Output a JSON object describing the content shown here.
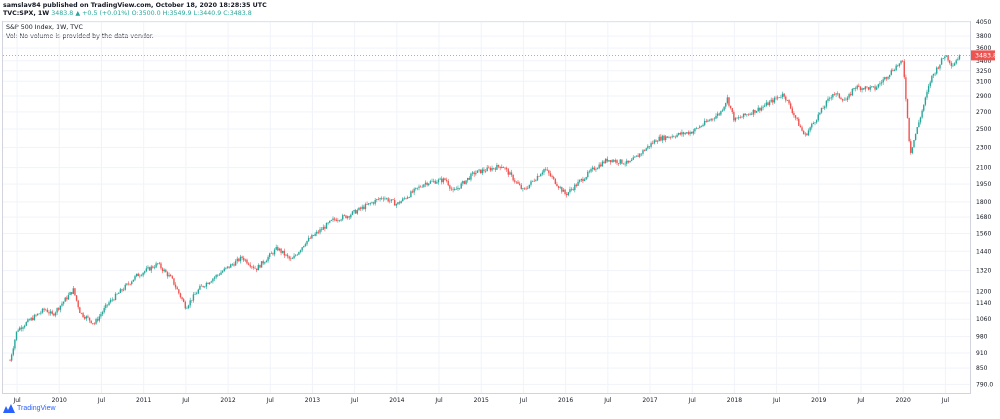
{
  "header": {
    "line1": "samslav84 published on TradingView.com, October 18, 2020 18:28:35 UTC",
    "symbol": "TVC:SPX, 1W",
    "last": "3483.8",
    "change": "▲ +0.5 (+0.01%)",
    "ohlc": "O:3500.0 H:3549.9 L:3440.9 C:3483.8"
  },
  "legend": {
    "title": "S&P 500 Index, 1W, TVC",
    "vol_note": "Vol: No volume is provided by the data vendor."
  },
  "footer": {
    "brand": "TradingView"
  },
  "colors": {
    "up": "#26a69a",
    "down": "#ef5350",
    "price_tag": "#ef5350"
  },
  "chart_data": {
    "type": "candlestick",
    "title": "S&P 500 Index, 1W, TVC",
    "ylim": [
      760,
      4050
    ],
    "y_tick_labels": [
      "4050",
      "3800",
      "3600",
      "3400",
      "3250",
      "3100",
      "2900",
      "2700",
      "2500",
      "2300",
      "2100",
      "1950",
      "1800",
      "1680",
      "1560",
      "1440",
      "1320",
      "1200",
      "1140",
      "1060",
      "980",
      "910",
      "850",
      "790.0"
    ],
    "x_tick_labels": [
      "Jul",
      "2010",
      "Jul",
      "2011",
      "Jul",
      "2012",
      "Jul",
      "2013",
      "Jul",
      "2014",
      "Jul",
      "2015",
      "Jul",
      "2016",
      "Jul",
      "2017",
      "Jul",
      "2018",
      "Jul",
      "2019",
      "Jul",
      "2020",
      "Jul"
    ],
    "last_price_label": "3483.8",
    "series": [
      {
        "name": "S&P 500 Index",
        "points": [
          {
            "t": "2009-07",
            "close": 880
          },
          {
            "t": "2009-08",
            "close": 1010
          },
          {
            "t": "2009-10",
            "close": 1060
          },
          {
            "t": "2009-12",
            "close": 1110
          },
          {
            "t": "2010-01",
            "close": 1080
          },
          {
            "t": "2010-04",
            "close": 1210
          },
          {
            "t": "2010-05",
            "close": 1090
          },
          {
            "t": "2010-07",
            "close": 1040
          },
          {
            "t": "2010-09",
            "close": 1140
          },
          {
            "t": "2011-01",
            "close": 1290
          },
          {
            "t": "2011-04",
            "close": 1360
          },
          {
            "t": "2011-06",
            "close": 1270
          },
          {
            "t": "2011-08",
            "close": 1120
          },
          {
            "t": "2011-10",
            "close": 1220
          },
          {
            "t": "2012-01",
            "close": 1310
          },
          {
            "t": "2012-04",
            "close": 1400
          },
          {
            "t": "2012-06",
            "close": 1330
          },
          {
            "t": "2012-09",
            "close": 1460
          },
          {
            "t": "2012-11",
            "close": 1380
          },
          {
            "t": "2013-01",
            "close": 1500
          },
          {
            "t": "2013-05",
            "close": 1660
          },
          {
            "t": "2013-07",
            "close": 1690
          },
          {
            "t": "2013-12",
            "close": 1840
          },
          {
            "t": "2014-02",
            "close": 1780
          },
          {
            "t": "2014-06",
            "close": 1960
          },
          {
            "t": "2014-09",
            "close": 1990
          },
          {
            "t": "2014-10",
            "close": 1880
          },
          {
            "t": "2015-01",
            "close": 2050
          },
          {
            "t": "2015-05",
            "close": 2120
          },
          {
            "t": "2015-08",
            "close": 1890
          },
          {
            "t": "2015-11",
            "close": 2090
          },
          {
            "t": "2016-02",
            "close": 1860
          },
          {
            "t": "2016-06",
            "close": 2090
          },
          {
            "t": "2016-08",
            "close": 2180
          },
          {
            "t": "2016-11",
            "close": 2140
          },
          {
            "t": "2017-03",
            "close": 2390
          },
          {
            "t": "2017-08",
            "close": 2470
          },
          {
            "t": "2017-12",
            "close": 2690
          },
          {
            "t": "2018-01",
            "close": 2870
          },
          {
            "t": "2018-02",
            "close": 2600
          },
          {
            "t": "2018-06",
            "close": 2760
          },
          {
            "t": "2018-09",
            "close": 2930
          },
          {
            "t": "2018-12",
            "close": 2420
          },
          {
            "t": "2019-04",
            "close": 2940
          },
          {
            "t": "2019-06",
            "close": 2840
          },
          {
            "t": "2019-07",
            "close": 3020
          },
          {
            "t": "2019-10",
            "close": 3000
          },
          {
            "t": "2020-01",
            "close": 3320
          },
          {
            "t": "2020-02",
            "close": 3380
          },
          {
            "t": "2020-03",
            "close": 2240
          },
          {
            "t": "2020-06",
            "close": 3150
          },
          {
            "t": "2020-08",
            "close": 3500
          },
          {
            "t": "2020-09",
            "close": 3330
          },
          {
            "t": "2020-10",
            "close": 3484
          }
        ]
      }
    ]
  }
}
